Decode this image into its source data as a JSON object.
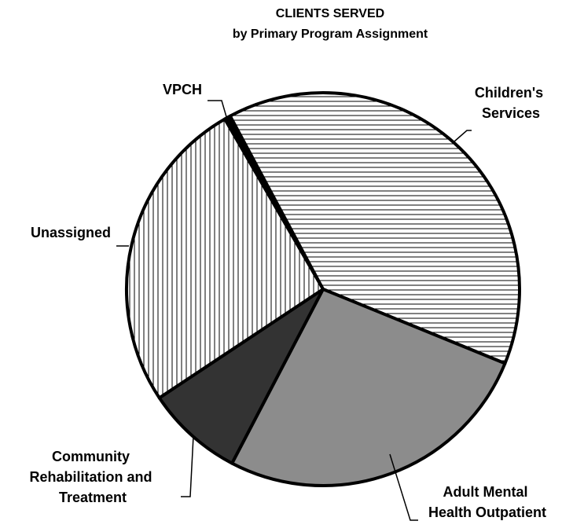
{
  "chart_data": {
    "type": "pie",
    "title": "CLIENTS SERVED",
    "subtitle": "by Primary Program Assignment",
    "categories": [
      "VPCH",
      "Children's Services",
      "Adult Mental Health Outpatient",
      "Community Rehabilitation and Treatment",
      "Unassigned"
    ],
    "values": [
      0.5,
      39,
      26.5,
      8,
      26
    ],
    "colors": [
      "#000000",
      "#ffffff",
      "#8c8c8c",
      "#333333",
      "#ffffff"
    ],
    "patterns": [
      "solid",
      "horizontal",
      "solid",
      "solid",
      "vertical"
    ]
  }
}
